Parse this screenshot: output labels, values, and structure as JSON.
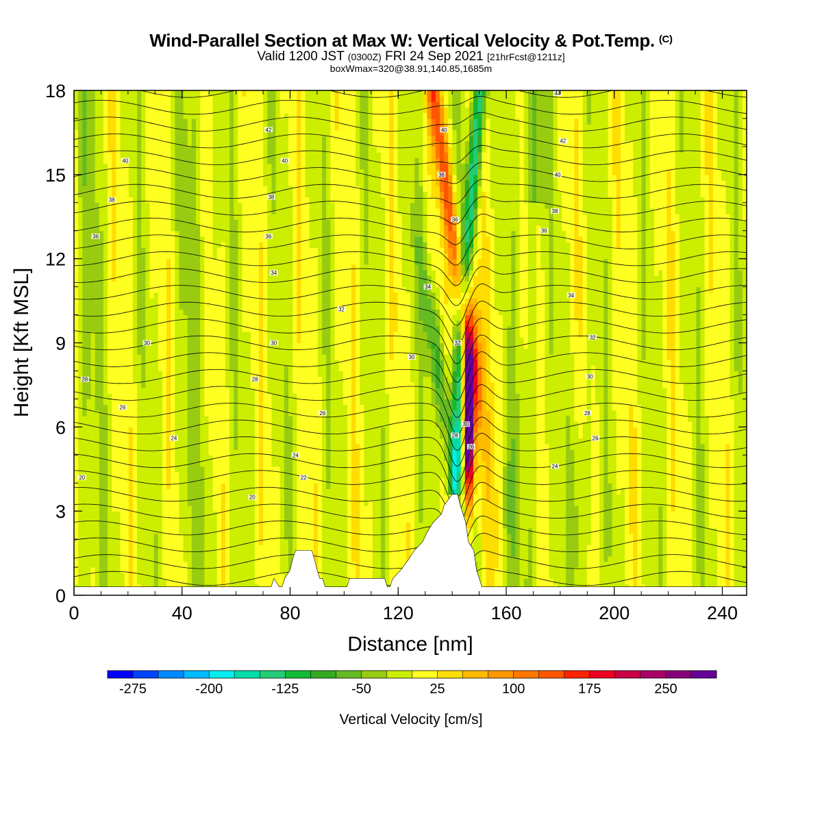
{
  "header": {
    "title": "Wind-Parallel Section at Max W: Vertical Velocity & Pot.Temp.",
    "title_mark": "(C)",
    "valid_prefix": "Valid 1200 JST",
    "valid_utc": "(0300Z)",
    "valid_date": "FRI 24 Sep 2021",
    "forecast": "[21hrFcst@1211z]",
    "box_info": "boxWmax=320@38.91,140.85,1685m"
  },
  "chart_data": {
    "type": "heatmap",
    "xlabel": "Distance [nm]",
    "ylabel": "Height [Kft MSL]",
    "xlim": [
      0,
      249
    ],
    "ylim": [
      0,
      18
    ],
    "x_ticks": [
      0,
      40,
      80,
      120,
      160,
      200,
      240
    ],
    "y_ticks": [
      0,
      3,
      6,
      9,
      12,
      15,
      18
    ],
    "colorbar": {
      "title": "Vertical Velocity [cm/s]",
      "min": -300,
      "max": 300,
      "tick_labels": [
        "-275",
        "-200",
        "-125",
        "-50",
        "25",
        "100",
        "175",
        "250"
      ],
      "tick_values": [
        -275,
        -200,
        -125,
        -50,
        25,
        100,
        175,
        250
      ],
      "colors": [
        "#0000ff",
        "#0044ff",
        "#0088ff",
        "#00bbff",
        "#00eeee",
        "#00ddaa",
        "#22cc77",
        "#11bb33",
        "#33aa22",
        "#66bb22",
        "#99cc11",
        "#ccee00",
        "#ffff22",
        "#ffdd00",
        "#ffbb00",
        "#ff9900",
        "#ff7700",
        "#ff5500",
        "#ff2200",
        "#ee0022",
        "#cc0044",
        "#aa0066",
        "#880077",
        "#660099"
      ]
    },
    "background_band_colors": [
      "#b4e600",
      "#ffff2a",
      "#88c81e"
    ],
    "terrain": [
      [
        0,
        0.3
      ],
      [
        73,
        0.3
      ],
      [
        74,
        0.6
      ],
      [
        76,
        0.3
      ],
      [
        77,
        0.3
      ],
      [
        78,
        0.6
      ],
      [
        80,
        0.9
      ],
      [
        81,
        1.3
      ],
      [
        82,
        1.6
      ],
      [
        88,
        1.6
      ],
      [
        89,
        1.3
      ],
      [
        90,
        0.9
      ],
      [
        91,
        0.6
      ],
      [
        92,
        0.6
      ],
      [
        93,
        0.3
      ],
      [
        101,
        0.3
      ],
      [
        102,
        0.6
      ],
      [
        115,
        0.6
      ],
      [
        116,
        0.3
      ],
      [
        117,
        0.3
      ],
      [
        118,
        0.6
      ],
      [
        121,
        0.9
      ],
      [
        124,
        1.3
      ],
      [
        126,
        1.6
      ],
      [
        129,
        1.9
      ],
      [
        131,
        2.3
      ],
      [
        133,
        2.6
      ],
      [
        136,
        2.9
      ],
      [
        137,
        3.2
      ],
      [
        140,
        3.6
      ],
      [
        142,
        3.6
      ],
      [
        143,
        3.2
      ],
      [
        145,
        2.6
      ],
      [
        146,
        1.9
      ],
      [
        148,
        1.6
      ],
      [
        149,
        0.9
      ],
      [
        150,
        0.6
      ],
      [
        151,
        0.3
      ],
      [
        249,
        0.3
      ]
    ],
    "theta_contour_labels": [
      {
        "x": 19,
        "y": 15.5,
        "v": "40"
      },
      {
        "x": 14,
        "y": 14.1,
        "v": "38"
      },
      {
        "x": 8,
        "y": 12.8,
        "v": "36"
      },
      {
        "x": 27,
        "y": 9.0,
        "v": "30"
      },
      {
        "x": 4,
        "y": 7.7,
        "v": "28"
      },
      {
        "x": 18,
        "y": 6.7,
        "v": "26"
      },
      {
        "x": 37,
        "y": 5.6,
        "v": "24"
      },
      {
        "x": 3,
        "y": 4.2,
        "v": "20"
      },
      {
        "x": 72,
        "y": 16.6,
        "v": "42"
      },
      {
        "x": 78,
        "y": 15.5,
        "v": "40"
      },
      {
        "x": 73,
        "y": 14.2,
        "v": "38"
      },
      {
        "x": 72,
        "y": 12.8,
        "v": "36"
      },
      {
        "x": 74,
        "y": 11.5,
        "v": "34"
      },
      {
        "x": 99,
        "y": 10.2,
        "v": "32"
      },
      {
        "x": 74,
        "y": 9.0,
        "v": "30"
      },
      {
        "x": 67,
        "y": 7.7,
        "v": "28"
      },
      {
        "x": 92,
        "y": 6.5,
        "v": "26"
      },
      {
        "x": 82,
        "y": 5.0,
        "v": "24"
      },
      {
        "x": 85,
        "y": 4.2,
        "v": "22"
      },
      {
        "x": 66,
        "y": 3.5,
        "v": "20"
      },
      {
        "x": 137,
        "y": 16.6,
        "v": "40"
      },
      {
        "x": 136,
        "y": 15.0,
        "v": "38"
      },
      {
        "x": 141,
        "y": 13.4,
        "v": "36"
      },
      {
        "x": 131,
        "y": 11.0,
        "v": "34"
      },
      {
        "x": 142,
        "y": 9.0,
        "v": "32"
      },
      {
        "x": 125,
        "y": 8.5,
        "v": "30"
      },
      {
        "x": 141,
        "y": 5.7,
        "v": "28"
      },
      {
        "x": 145,
        "y": 6.1,
        "v": "30"
      },
      {
        "x": 147,
        "y": 5.3,
        "v": "26"
      },
      {
        "x": 179,
        "y": 17.9,
        "v": "44"
      },
      {
        "x": 181,
        "y": 16.2,
        "v": "42"
      },
      {
        "x": 179,
        "y": 15.0,
        "v": "40"
      },
      {
        "x": 178,
        "y": 13.7,
        "v": "38"
      },
      {
        "x": 174,
        "y": 13.0,
        "v": "36"
      },
      {
        "x": 184,
        "y": 10.7,
        "v": "34"
      },
      {
        "x": 192,
        "y": 9.2,
        "v": "32"
      },
      {
        "x": 191,
        "y": 7.8,
        "v": "30"
      },
      {
        "x": 190,
        "y": 6.5,
        "v": "28"
      },
      {
        "x": 193,
        "y": 5.6,
        "v": "26"
      },
      {
        "x": 178,
        "y": 4.6,
        "v": "24"
      }
    ]
  }
}
